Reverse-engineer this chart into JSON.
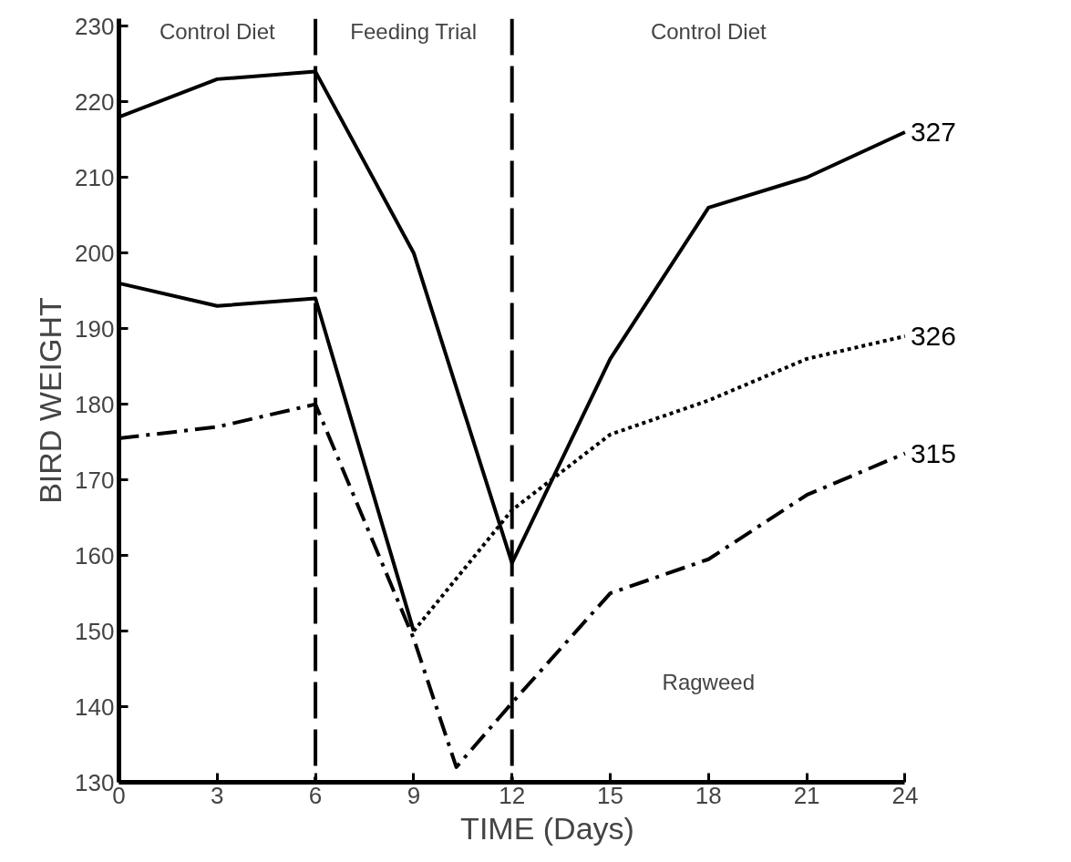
{
  "chart_data": {
    "type": "line",
    "xlabel": "TIME (Days)",
    "ylabel": "BIRD WEIGHT",
    "xlim": [
      0,
      24
    ],
    "ylim": [
      130,
      231
    ],
    "xticks": [
      0,
      3,
      6,
      9,
      12,
      15,
      18,
      21,
      24
    ],
    "yticks": [
      130,
      140,
      150,
      160,
      170,
      180,
      190,
      200,
      210,
      220,
      230
    ],
    "grid": false,
    "marker": "none",
    "series": [
      {
        "name": "327",
        "color": "#000000",
        "line_style": "solid",
        "x": [
          0,
          3,
          6,
          9,
          12,
          15,
          18,
          21,
          24
        ],
        "values": [
          218,
          223,
          224,
          200,
          159,
          186,
          206,
          210,
          216
        ]
      },
      {
        "color": "#000000",
        "line_style": "solid",
        "x": [
          0,
          3,
          6,
          9
        ],
        "values": [
          196,
          193,
          194,
          150
        ]
      },
      {
        "name": "326",
        "color": "#000000",
        "line_style": "dotted",
        "x": [
          9,
          12,
          15,
          18,
          21,
          24
        ],
        "values": [
          150,
          166,
          176,
          180.5,
          186,
          189
        ]
      },
      {
        "name": "315",
        "color": "#000000",
        "line_style": "dashdot",
        "x": [
          0,
          3,
          6,
          9,
          10.3,
          12,
          15,
          18,
          21,
          24
        ],
        "values": [
          175.5,
          177,
          180,
          149,
          132,
          140.5,
          155,
          159.5,
          168,
          173.5
        ]
      }
    ],
    "ref_lines": [
      {
        "axis": "x",
        "value": 6,
        "color": "#000000",
        "line_style": "dashed"
      },
      {
        "axis": "x",
        "value": 12,
        "color": "#000000",
        "line_style": "dashed"
      }
    ],
    "annotations": [
      "Control Diet",
      "Feeding Trial",
      "Control Diet",
      "Ragweed"
    ]
  }
}
